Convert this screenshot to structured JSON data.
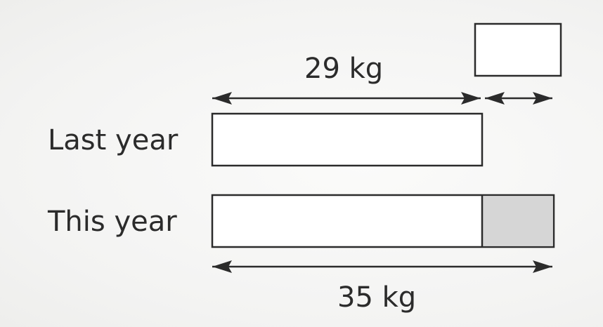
{
  "rows": [
    {
      "label": "Last year"
    },
    {
      "label": "This year"
    }
  ],
  "measures": {
    "top": "29 kg",
    "bottom": "35 kg"
  },
  "colors": {
    "ink": "#2b2b2b",
    "shade": "#d6d6d6",
    "box_fill": "#ffffff"
  }
}
